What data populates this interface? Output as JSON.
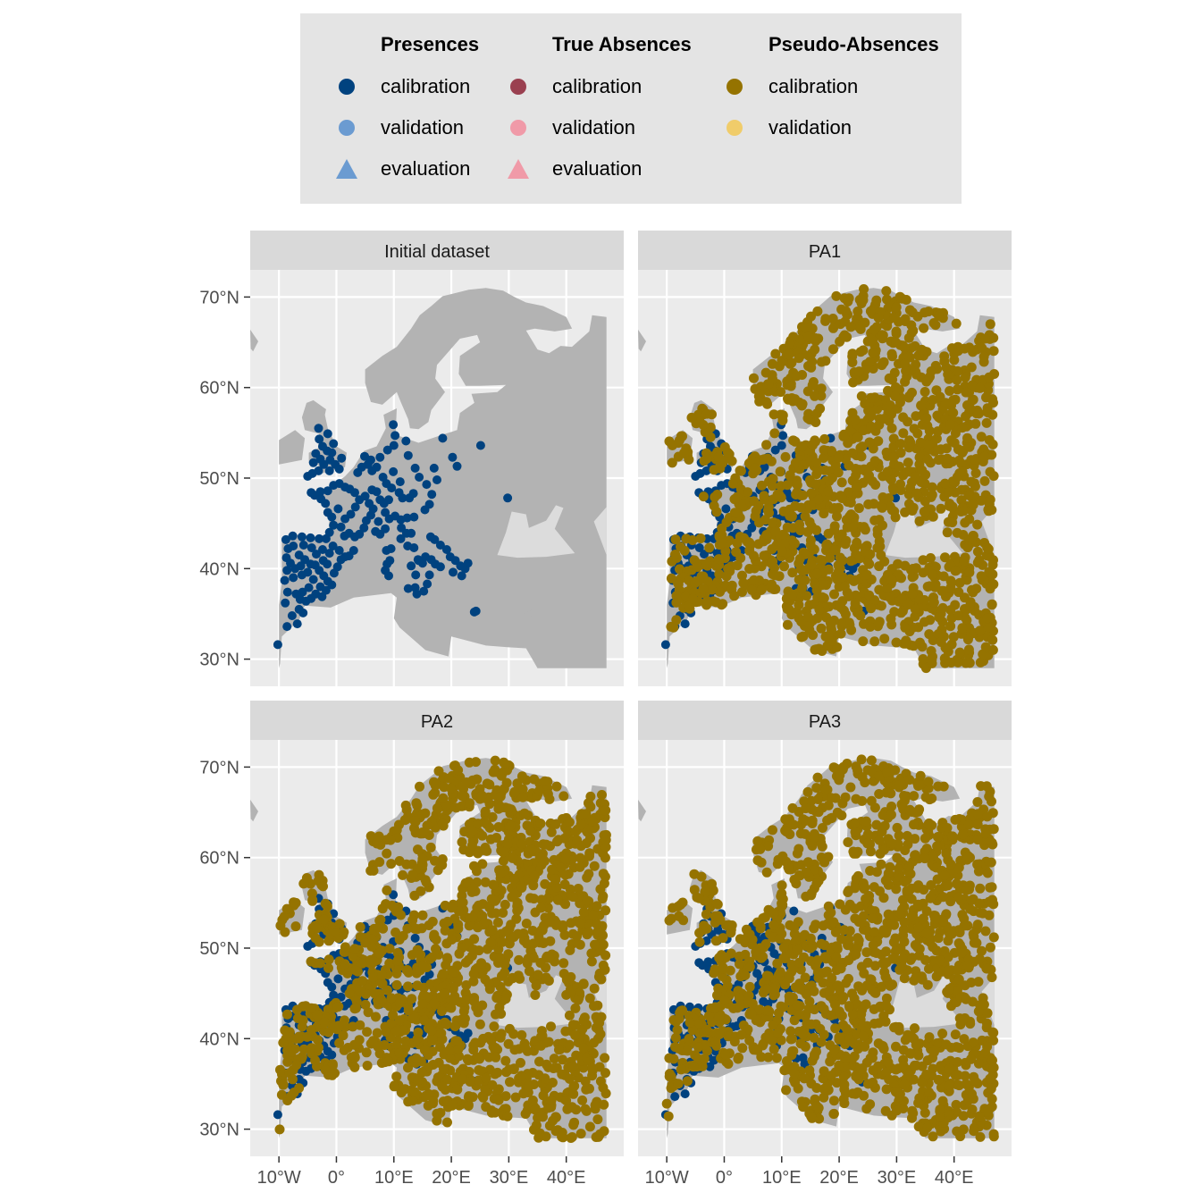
{
  "colors": {
    "panel_bg": "#ebebeb",
    "strip_bg": "#d9d9d9",
    "grid": "#ffffff",
    "land": "#b3b3b3",
    "land_light": "#dcdcdc",
    "presence_calibration": "#00427f",
    "presence_validation": "#6b9bd1",
    "presence_evaluation": "#6b9bd1",
    "absence_calibration": "#9a4050",
    "absence_validation": "#f09aa8",
    "absence_evaluation": "#f09aa8",
    "pseudo_calibration": "#957300",
    "pseudo_validation": "#f0cc6a"
  },
  "legend": {
    "groups": [
      {
        "title": "Presences",
        "items": [
          {
            "label": "calibration",
            "shape": "circle",
            "color_key": "presence_calibration"
          },
          {
            "label": "validation",
            "shape": "circle",
            "color_key": "presence_validation"
          },
          {
            "label": "evaluation",
            "shape": "triangle",
            "color_key": "presence_evaluation"
          }
        ]
      },
      {
        "title": "True Absences",
        "items": [
          {
            "label": "calibration",
            "shape": "circle",
            "color_key": "absence_calibration"
          },
          {
            "label": "validation",
            "shape": "circle",
            "color_key": "absence_validation"
          },
          {
            "label": "evaluation",
            "shape": "triangle",
            "color_key": "absence_evaluation"
          }
        ]
      },
      {
        "title": "Pseudo-Absences",
        "items": [
          {
            "label": "calibration",
            "shape": "circle",
            "color_key": "pseudo_calibration"
          },
          {
            "label": "validation",
            "shape": "circle",
            "color_key": "pseudo_validation"
          }
        ]
      }
    ]
  },
  "chart_data": {
    "type": "scatter",
    "facets": [
      "Initial dataset",
      "PA1",
      "PA2",
      "PA3"
    ],
    "x_ticks": [
      {
        "value": -10,
        "label": "10°W"
      },
      {
        "value": 0,
        "label": "0°"
      },
      {
        "value": 10,
        "label": "10°E"
      },
      {
        "value": 20,
        "label": "20°E"
      },
      {
        "value": 30,
        "label": "30°E"
      },
      {
        "value": 40,
        "label": "40°E"
      }
    ],
    "y_ticks": [
      {
        "value": 30,
        "label": "30°N"
      },
      {
        "value": 40,
        "label": "40°N"
      },
      {
        "value": 50,
        "label": "50°N"
      },
      {
        "value": 60,
        "label": "60°N"
      },
      {
        "value": 70,
        "label": "70°N"
      }
    ],
    "xlim": [
      -15,
      50
    ],
    "ylim": [
      27,
      73
    ],
    "map_extent": {
      "lon": [
        -10,
        47
      ],
      "lat": [
        29,
        71
      ]
    },
    "presences_calibration": [
      [
        -10.2,
        31.6
      ],
      [
        -8.9,
        36.2
      ],
      [
        -8.5,
        37.4
      ],
      [
        -9.0,
        38.7
      ],
      [
        -8.6,
        39.8
      ],
      [
        -8.7,
        41.2
      ],
      [
        -8.4,
        42.2
      ],
      [
        -8.8,
        43.2
      ],
      [
        -7.6,
        43.6
      ],
      [
        -6.0,
        43.5
      ],
      [
        -4.5,
        43.4
      ],
      [
        -3.0,
        43.3
      ],
      [
        -1.8,
        43.3
      ],
      [
        -7.5,
        42.5
      ],
      [
        -6.5,
        41.5
      ],
      [
        -5.5,
        41.0
      ],
      [
        -4.5,
        40.5
      ],
      [
        -3.7,
        40.4
      ],
      [
        -3.0,
        39.8
      ],
      [
        -2.2,
        39.2
      ],
      [
        -1.5,
        38.6
      ],
      [
        -0.8,
        38.2
      ],
      [
        -0.4,
        39.5
      ],
      [
        0.2,
        40.2
      ],
      [
        0.8,
        41.0
      ],
      [
        1.5,
        41.3
      ],
      [
        2.2,
        41.4
      ],
      [
        3.0,
        42.0
      ],
      [
        -5.9,
        37.4
      ],
      [
        -4.8,
        37.9
      ],
      [
        -3.6,
        37.2
      ],
      [
        -2.5,
        36.9
      ],
      [
        -5.3,
        36.4
      ],
      [
        -6.3,
        36.6
      ],
      [
        -7.0,
        37.2
      ],
      [
        -4.4,
        36.7
      ],
      [
        -6.5,
        35.5
      ],
      [
        -5.8,
        35.1
      ],
      [
        -7.7,
        34.8
      ],
      [
        -8.6,
        33.6
      ],
      [
        -6.8,
        33.9
      ],
      [
        -7.5,
        39.0
      ],
      [
        -6.0,
        39.3
      ],
      [
        -5.0,
        39.6
      ],
      [
        -4.0,
        38.8
      ],
      [
        -2.8,
        38.0
      ],
      [
        -1.8,
        37.6
      ],
      [
        -3.5,
        41.6
      ],
      [
        -2.4,
        42.1
      ],
      [
        -1.2,
        41.7
      ],
      [
        -0.6,
        42.5
      ],
      [
        0.5,
        42.0
      ],
      [
        -5.7,
        42.6
      ],
      [
        -4.3,
        42.3
      ],
      [
        -8.0,
        40.6
      ],
      [
        -7.2,
        40.0
      ],
      [
        -6.2,
        40.3
      ],
      [
        -1.6,
        40.5
      ],
      [
        -2.3,
        40.9
      ],
      [
        -0.5,
        44.8
      ],
      [
        -1.2,
        44.0
      ],
      [
        -0.8,
        45.7
      ],
      [
        0.3,
        46.6
      ],
      [
        -1.5,
        46.2
      ],
      [
        -1.9,
        47.2
      ],
      [
        -2.7,
        47.7
      ],
      [
        -3.8,
        48.1
      ],
      [
        -4.4,
        48.4
      ],
      [
        -2.8,
        48.5
      ],
      [
        -1.5,
        48.6
      ],
      [
        -0.5,
        49.2
      ],
      [
        0.5,
        49.4
      ],
      [
        1.5,
        49.0
      ],
      [
        2.3,
        48.8
      ],
      [
        3.2,
        48.4
      ],
      [
        4.0,
        47.6
      ],
      [
        3.3,
        46.8
      ],
      [
        2.5,
        46.0
      ],
      [
        1.5,
        45.5
      ],
      [
        0.8,
        44.6
      ],
      [
        1.4,
        43.6
      ],
      [
        2.2,
        43.9
      ],
      [
        3.2,
        43.5
      ],
      [
        4.0,
        43.8
      ],
      [
        4.8,
        44.5
      ],
      [
        5.2,
        45.3
      ],
      [
        6.0,
        45.9
      ],
      [
        6.4,
        46.6
      ],
      [
        5.7,
        47.2
      ],
      [
        5.0,
        48.0
      ],
      [
        6.2,
        48.7
      ],
      [
        7.0,
        48.5
      ],
      [
        7.6,
        47.6
      ],
      [
        8.3,
        47.2
      ],
      [
        9.1,
        47.6
      ],
      [
        8.5,
        46.2
      ],
      [
        7.3,
        45.2
      ],
      [
        6.8,
        44.1
      ],
      [
        7.6,
        43.8
      ],
      [
        8.5,
        44.4
      ],
      [
        9.2,
        45.5
      ],
      [
        10.2,
        45.8
      ],
      [
        11.2,
        45.4
      ],
      [
        12.3,
        45.6
      ],
      [
        13.5,
        45.7
      ],
      [
        11.3,
        44.5
      ],
      [
        12.2,
        43.9
      ],
      [
        11.2,
        43.3
      ],
      [
        12.4,
        42.5
      ],
      [
        13.5,
        42.3
      ],
      [
        14.2,
        41.0
      ],
      [
        15.0,
        40.6
      ],
      [
        15.5,
        41.3
      ],
      [
        16.5,
        41.0
      ],
      [
        17.2,
        40.5
      ],
      [
        18.1,
        40.2
      ],
      [
        16.2,
        39.3
      ],
      [
        15.8,
        38.3
      ],
      [
        14.3,
        40.9
      ],
      [
        13.7,
        37.9
      ],
      [
        15.2,
        37.5
      ],
      [
        12.5,
        37.8
      ],
      [
        14.0,
        37.2
      ],
      [
        9.1,
        39.2
      ],
      [
        8.8,
        40.5
      ],
      [
        9.3,
        40.9
      ],
      [
        9.5,
        42.2
      ],
      [
        8.7,
        42.0
      ],
      [
        16.4,
        43.5
      ],
      [
        17.1,
        43.2
      ],
      [
        18.1,
        42.6
      ],
      [
        19.2,
        42.1
      ],
      [
        19.8,
        41.3
      ],
      [
        20.7,
        40.9
      ],
      [
        21.6,
        40.3
      ],
      [
        22.4,
        40.0
      ],
      [
        21.8,
        39.2
      ],
      [
        22.9,
        40.6
      ],
      [
        20.3,
        39.6
      ],
      [
        24.3,
        35.3
      ],
      [
        13.0,
        43.9
      ],
      [
        3.7,
        50.6
      ],
      [
        4.4,
        51.2
      ],
      [
        5.5,
        51.5
      ],
      [
        6.2,
        50.8
      ],
      [
        4.9,
        52.4
      ],
      [
        6.0,
        52.0
      ],
      [
        7.0,
        51.2
      ],
      [
        8.1,
        50.1
      ],
      [
        8.7,
        49.4
      ],
      [
        9.6,
        48.9
      ],
      [
        10.9,
        48.4
      ],
      [
        11.5,
        47.8
      ],
      [
        12.7,
        47.8
      ],
      [
        13.4,
        48.3
      ],
      [
        9.9,
        50.7
      ],
      [
        11.1,
        49.6
      ],
      [
        7.6,
        52.3
      ],
      [
        8.9,
        53.1
      ],
      [
        10.0,
        53.6
      ],
      [
        12.5,
        52.5
      ],
      [
        13.7,
        51.1
      ],
      [
        14.4,
        50.1
      ],
      [
        15.7,
        49.3
      ],
      [
        16.6,
        48.2
      ],
      [
        16.2,
        47.1
      ],
      [
        15.4,
        46.5
      ],
      [
        17.5,
        49.8
      ],
      [
        20.2,
        52.3
      ],
      [
        18.5,
        54.4
      ],
      [
        21.0,
        51.3
      ],
      [
        17.0,
        51.1
      ],
      [
        12.1,
        54.1
      ],
      [
        10.2,
        54.7
      ],
      [
        9.9,
        55.9
      ],
      [
        -1.6,
        53.0
      ],
      [
        -1.1,
        52.0
      ],
      [
        -2.2,
        51.5
      ],
      [
        -3.1,
        50.8
      ],
      [
        -4.2,
        50.5
      ],
      [
        -0.2,
        51.5
      ],
      [
        0.9,
        52.2
      ],
      [
        -0.5,
        53.8
      ],
      [
        -2.4,
        53.5
      ],
      [
        -1.5,
        54.9
      ],
      [
        -3.0,
        54.3
      ],
      [
        -4.0,
        51.7
      ],
      [
        -5.0,
        50.2
      ],
      [
        -3.6,
        52.7
      ],
      [
        -1.2,
        50.8
      ],
      [
        0.5,
        51.0
      ],
      [
        -0.8,
        52.8
      ],
      [
        -2.8,
        52.1
      ],
      [
        -3.1,
        55.5
      ],
      [
        24.0,
        35.2
      ],
      [
        25.1,
        53.6
      ],
      [
        29.8,
        47.8
      ],
      [
        13.0,
        40.3
      ],
      [
        13.8,
        39.3
      ],
      [
        8.5,
        39.8
      ]
    ]
  }
}
